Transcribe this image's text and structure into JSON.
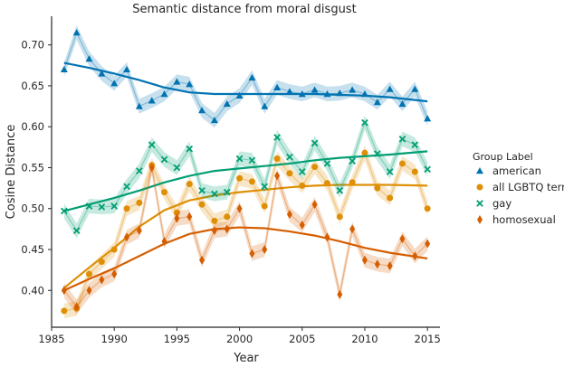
{
  "chart_data": {
    "type": "line",
    "title": "Semantic distance from moral disgust",
    "xlabel": "Year",
    "ylabel": "Cosine Distance",
    "xlim": [
      1985,
      2016
    ],
    "ylim": [
      0.355,
      0.735
    ],
    "xticks": [
      1985,
      1990,
      1995,
      2000,
      2005,
      2010,
      2015
    ],
    "yticks": [
      0.4,
      0.45,
      0.5,
      0.55,
      0.6,
      0.65,
      0.7
    ],
    "ytick_labels": [
      "0.40",
      "0.45",
      "0.50",
      "0.55",
      "0.60",
      "0.65",
      "0.70"
    ],
    "grid": false,
    "legend": {
      "title": "Group Label",
      "position": "right"
    },
    "x": [
      1986,
      1987,
      1988,
      1989,
      1990,
      1991,
      1992,
      1993,
      1994,
      1995,
      1996,
      1997,
      1998,
      1999,
      2000,
      2001,
      2002,
      2003,
      2004,
      2005,
      2006,
      2007,
      2008,
      2009,
      2010,
      2011,
      2012,
      2013,
      2014,
      2015
    ],
    "series": [
      {
        "name": "american",
        "color": "#0173b2",
        "marker": "triangle",
        "values": [
          0.67,
          0.715,
          0.683,
          0.665,
          0.653,
          0.67,
          0.625,
          0.632,
          0.64,
          0.655,
          0.652,
          0.62,
          0.608,
          0.628,
          0.638,
          0.66,
          0.625,
          0.648,
          0.643,
          0.64,
          0.645,
          0.64,
          0.641,
          0.645,
          0.64,
          0.63,
          0.646,
          0.628,
          0.646,
          0.61
        ],
        "trend": [
          [
            1986,
            0.678
          ],
          [
            1988,
            0.672
          ],
          [
            1990,
            0.665
          ],
          [
            1992,
            0.657
          ],
          [
            1994,
            0.648
          ],
          [
            1996,
            0.642
          ],
          [
            1998,
            0.64
          ],
          [
            2000,
            0.64
          ],
          [
            2002,
            0.64
          ],
          [
            2004,
            0.64
          ],
          [
            2006,
            0.64
          ],
          [
            2008,
            0.639
          ],
          [
            2010,
            0.638
          ],
          [
            2012,
            0.636
          ],
          [
            2015,
            0.631
          ]
        ]
      },
      {
        "name": "all LGBTQ terms",
        "color": "#de8f05",
        "marker": "circle",
        "values": [
          0.375,
          0.378,
          0.42,
          0.435,
          0.45,
          0.5,
          0.507,
          0.553,
          0.52,
          0.495,
          0.53,
          0.505,
          0.485,
          0.49,
          0.537,
          0.533,
          0.503,
          0.561,
          0.543,
          0.528,
          0.551,
          0.531,
          0.49,
          0.532,
          0.568,
          0.525,
          0.513,
          0.555,
          0.545,
          0.5
        ],
        "trend": [
          [
            1986,
            0.403
          ],
          [
            1988,
            0.428
          ],
          [
            1990,
            0.452
          ],
          [
            1992,
            0.478
          ],
          [
            1994,
            0.498
          ],
          [
            1996,
            0.51
          ],
          [
            1998,
            0.516
          ],
          [
            2000,
            0.52
          ],
          [
            2002,
            0.523
          ],
          [
            2004,
            0.526
          ],
          [
            2006,
            0.528
          ],
          [
            2008,
            0.529
          ],
          [
            2010,
            0.529
          ],
          [
            2012,
            0.529
          ],
          [
            2015,
            0.528
          ]
        ]
      },
      {
        "name": "gay",
        "color": "#029e73",
        "marker": "x",
        "values": [
          0.497,
          0.473,
          0.503,
          0.502,
          0.503,
          0.527,
          0.546,
          0.578,
          0.56,
          0.55,
          0.573,
          0.522,
          0.518,
          0.52,
          0.561,
          0.559,
          0.527,
          0.587,
          0.563,
          0.545,
          0.58,
          0.555,
          0.522,
          0.558,
          0.605,
          0.567,
          0.545,
          0.585,
          0.578,
          0.548
        ],
        "trend": [
          [
            1986,
            0.497
          ],
          [
            1988,
            0.505
          ],
          [
            1990,
            0.513
          ],
          [
            1992,
            0.522
          ],
          [
            1994,
            0.532
          ],
          [
            1996,
            0.54
          ],
          [
            1998,
            0.546
          ],
          [
            2000,
            0.549
          ],
          [
            2002,
            0.552
          ],
          [
            2004,
            0.555
          ],
          [
            2006,
            0.559
          ],
          [
            2008,
            0.562
          ],
          [
            2010,
            0.564
          ],
          [
            2012,
            0.566
          ],
          [
            2015,
            0.57
          ]
        ]
      },
      {
        "name": "homosexual",
        "color": "#d55e00",
        "marker": "diamond",
        "values": [
          0.4,
          0.38,
          0.4,
          0.413,
          0.42,
          0.465,
          0.473,
          0.55,
          0.46,
          0.488,
          0.49,
          0.437,
          0.473,
          0.475,
          0.5,
          0.445,
          0.45,
          0.54,
          0.493,
          0.48,
          0.505,
          0.465,
          0.395,
          0.475,
          0.437,
          0.432,
          0.43,
          0.463,
          0.442,
          0.457
        ],
        "trend": [
          [
            1986,
            0.4
          ],
          [
            1988,
            0.414
          ],
          [
            1990,
            0.427
          ],
          [
            1992,
            0.442
          ],
          [
            1994,
            0.457
          ],
          [
            1996,
            0.469
          ],
          [
            1998,
            0.475
          ],
          [
            2000,
            0.477
          ],
          [
            2002,
            0.476
          ],
          [
            2004,
            0.472
          ],
          [
            2006,
            0.467
          ],
          [
            2008,
            0.46
          ],
          [
            2010,
            0.452
          ],
          [
            2012,
            0.446
          ],
          [
            2015,
            0.439
          ]
        ]
      }
    ]
  }
}
